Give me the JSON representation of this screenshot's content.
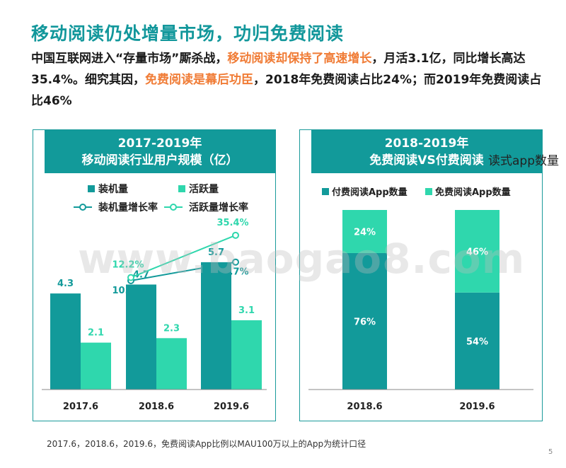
{
  "title": "移动阅读仍处增量市场，功归免费阅读",
  "intro": {
    "p1": "中国互联网进入“存量市场”厮杀战，",
    "h1": "移动阅读却保持了高速增长",
    "p2": "，月活3.1亿，同比增长高达35.4%。细究其因，",
    "h2": "免费阅读是幕后功臣",
    "p3": "，2018年免费阅读占比24%；而2019年免费阅读占比46%"
  },
  "colors": {
    "teal": "#129a9a",
    "mint": "#2fd7ad",
    "highlight": "#f07c36",
    "title": "#12979b"
  },
  "chart_data": [
    {
      "type": "bar",
      "title": "2017-2019年",
      "subtitle": "移动阅读行业用户规模（亿）",
      "categories": [
        "2017.6",
        "2018.6",
        "2019.6"
      ],
      "series": [
        {
          "name": "装机量",
          "values": [
            4.3,
            4.7,
            5.7
          ],
          "labels": [
            "4.3",
            "4.7",
            "5.7"
          ]
        },
        {
          "name": "活跃量",
          "values": [
            2.1,
            2.3,
            3.1
          ],
          "labels": [
            "2.1",
            "2.3",
            "3.1"
          ]
        }
      ],
      "lines": [
        {
          "name": "装机量增长率",
          "x": [
            "2018.6",
            "2019.6"
          ],
          "values": [
            10.5,
            20.7
          ],
          "labels": [
            "10.5%",
            "20.7%"
          ]
        },
        {
          "name": "活跃量增长率",
          "x": [
            "2018.6",
            "2019.6"
          ],
          "values": [
            12.2,
            35.4
          ],
          "labels": [
            "12.2%",
            "35.4%"
          ]
        }
      ],
      "legend": "top",
      "grid": false
    },
    {
      "type": "bar",
      "stacked": true,
      "title": "2018-2019年",
      "subtitle": "免费阅读VS付费阅读",
      "categories": [
        "2018.6",
        "2019.6"
      ],
      "series": [
        {
          "name": "付费阅读App数量",
          "values": [
            76,
            54
          ],
          "labels": [
            "76%",
            "54%"
          ]
        },
        {
          "name": "免费阅读App数量",
          "values": [
            24,
            46
          ],
          "labels": [
            "24%",
            "46%"
          ]
        }
      ],
      "ylim": [
        0,
        100
      ],
      "legend": "top",
      "grid": false
    }
  ],
  "overflow_text": "读式app数量",
  "watermark": "www.baogao8.com",
  "footnote": "2017.6，2018.6，2019.6，免费阅读App比例以MAU100万以上的App为统计口径",
  "page_number": "5"
}
